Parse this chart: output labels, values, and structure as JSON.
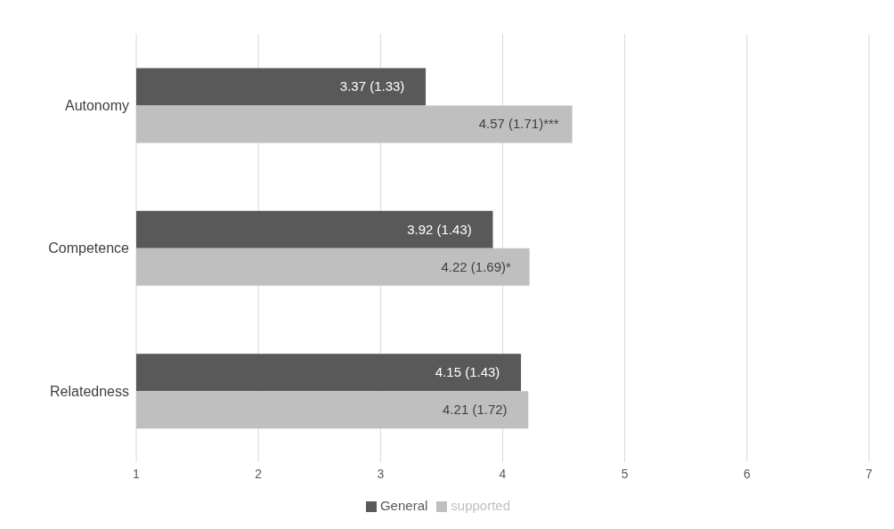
{
  "chart_data": {
    "type": "bar",
    "orientation": "horizontal",
    "categories": [
      "Autonomy",
      "Competence",
      "Relatedness"
    ],
    "series": [
      {
        "name": "General",
        "color": "#595959",
        "values": [
          3.37,
          3.92,
          4.15
        ],
        "value_labels": [
          "3.37 (1.33)",
          "3.92 (1.43)",
          "4.15 (1.43)"
        ]
      },
      {
        "name": "supported",
        "color": "#bfbfbf",
        "values": [
          4.57,
          4.22,
          4.21
        ],
        "value_labels": [
          "4.57 (1.71)***",
          "4.22 (1.69)*",
          "4.21 (1.72)"
        ]
      }
    ],
    "xlim": [
      1,
      7
    ],
    "xticks": [
      1,
      2,
      3,
      4,
      5,
      6,
      7
    ],
    "grid": "x",
    "legend": "bottom"
  }
}
